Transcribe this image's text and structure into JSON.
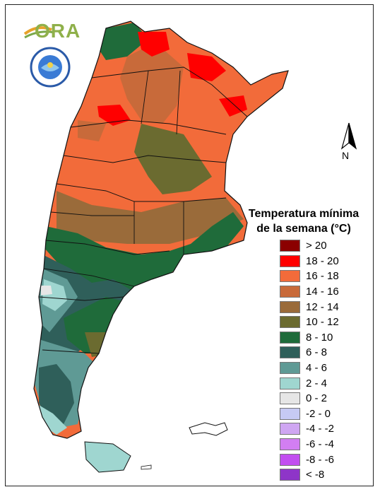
{
  "logo": {
    "text": "ORA",
    "seal_text": "SERVICIO METEOROLÓGICO NACIONAL · ARGENTINA"
  },
  "compass": {
    "label": "N"
  },
  "legend": {
    "title_line1": "Temperatura mínima",
    "title_line2": "de la semana (°C)",
    "items": [
      {
        "label": "> 20",
        "color": "#8b0000"
      },
      {
        "label": "18 - 20",
        "color": "#ff0000"
      },
      {
        "label": "16 - 18",
        "color": "#f26b3a"
      },
      {
        "label": "14 - 16",
        "color": "#c86a3a"
      },
      {
        "label": "12 - 14",
        "color": "#9a6b3a"
      },
      {
        "label": "10 - 12",
        "color": "#6b6b30"
      },
      {
        "label": "8 - 10",
        "color": "#1f6b3a"
      },
      {
        "label": "6 - 8",
        "color": "#2f5f5a"
      },
      {
        "label": "4 - 6",
        "color": "#5f9a95"
      },
      {
        "label": "2 - 4",
        "color": "#9fd6d0"
      },
      {
        "label": "0 - 2",
        "color": "#e6e6e6"
      },
      {
        "label": "-2 - 0",
        "color": "#c6caf4"
      },
      {
        "label": "-4 - -2",
        "color": "#cfa6f2"
      },
      {
        "label": "-6 - -4",
        "color": "#d27ef2"
      },
      {
        "label": "-8 - -6",
        "color": "#c24ef0"
      },
      {
        "label": "< -8",
        "color": "#8e35c8"
      }
    ]
  }
}
